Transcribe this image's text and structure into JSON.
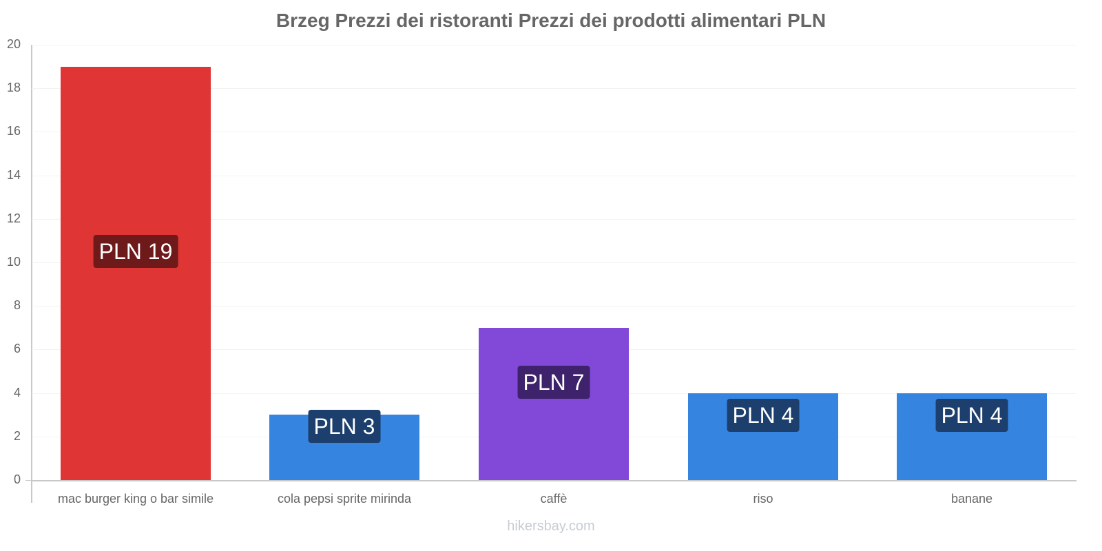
{
  "title": "Brzeg Prezzi dei ristoranti Prezzi dei prodotti alimentari PLN",
  "watermark": "hikersbay.com",
  "y_axis": {
    "ticks": [
      "0",
      "2",
      "4",
      "6",
      "8",
      "10",
      "12",
      "14",
      "16",
      "18",
      "20"
    ]
  },
  "bars": [
    {
      "category": "mac burger king o bar simile",
      "value": 19,
      "label": "PLN 19",
      "color": "#e03535",
      "label_bg": "#6e1a1a"
    },
    {
      "category": "cola pepsi sprite mirinda",
      "value": 3,
      "label": "PLN 3",
      "color": "#3584e0",
      "label_bg": "#1c3f6e"
    },
    {
      "category": "caffè",
      "value": 7,
      "label": "PLN 7",
      "color": "#8249d8",
      "label_bg": "#3e226b"
    },
    {
      "category": "riso",
      "value": 4,
      "label": "PLN 4",
      "color": "#3584e0",
      "label_bg": "#1c3f6e"
    },
    {
      "category": "banane",
      "value": 4,
      "label": "PLN 4",
      "color": "#3584e0",
      "label_bg": "#1c3f6e"
    }
  ],
  "chart_data": {
    "type": "bar",
    "title": "Brzeg Prezzi dei ristoranti Prezzi dei prodotti alimentari PLN",
    "categories": [
      "mac burger king o bar simile",
      "cola pepsi sprite mirinda",
      "caffè",
      "riso",
      "banane"
    ],
    "values": [
      19,
      3,
      7,
      4,
      4
    ],
    "data_labels": [
      "PLN 19",
      "PLN 3",
      "PLN 7",
      "PLN 4",
      "PLN 4"
    ],
    "colors": [
      "#e03535",
      "#3584e0",
      "#8249d8",
      "#3584e0",
      "#3584e0"
    ],
    "xlabel": "",
    "ylabel": "",
    "ylim": [
      0,
      20
    ],
    "yticks": [
      0,
      2,
      4,
      6,
      8,
      10,
      12,
      14,
      16,
      18,
      20
    ],
    "grid": true,
    "legend": "none"
  }
}
